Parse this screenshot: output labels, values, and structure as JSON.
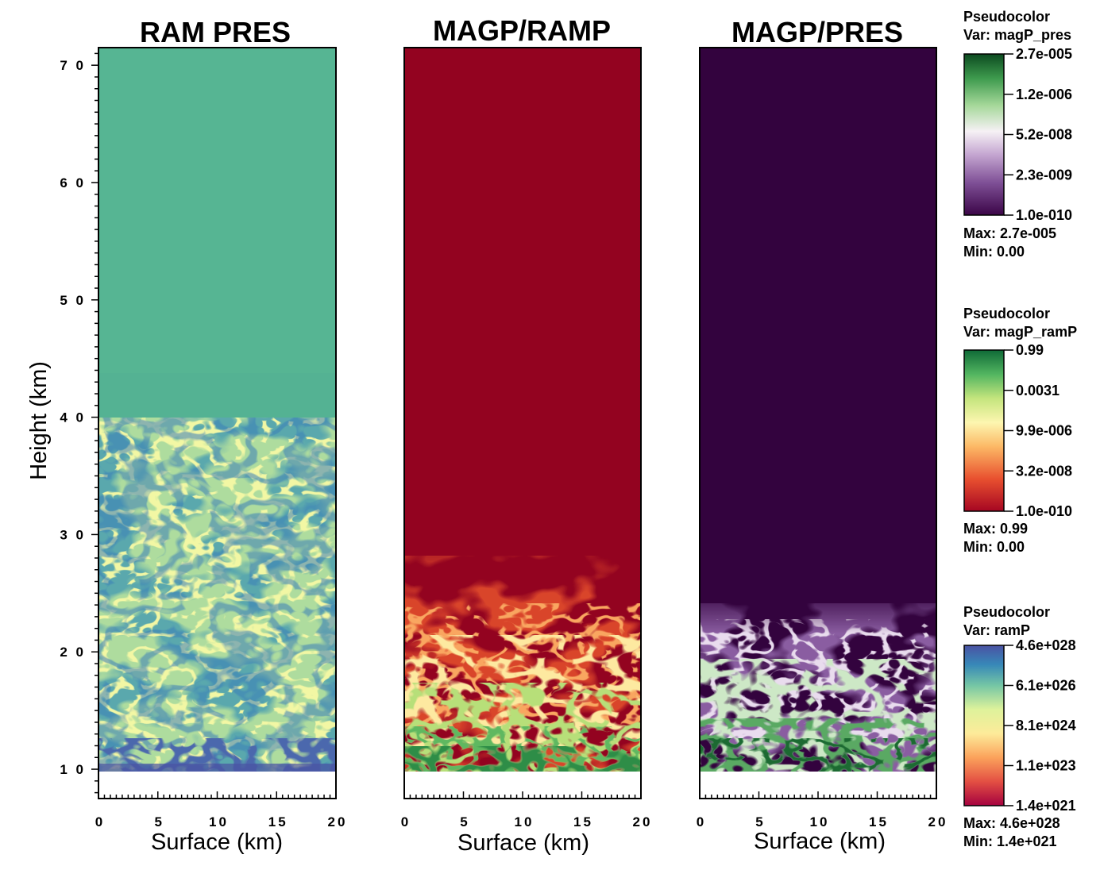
{
  "chart_data": [
    {
      "type": "heatmap",
      "title": "RAM PRES",
      "xlabel": "Surface (km)",
      "ylabel": "Height (km)",
      "xlim": [
        0,
        20
      ],
      "ylim": [
        7.5,
        71.5
      ],
      "x_ticks": [
        "0",
        "5",
        "10",
        "15",
        "20"
      ],
      "y_ticks": [
        "1 0",
        "2 0",
        "3 0",
        "4 0",
        "5 0",
        "6 0",
        "7 0"
      ],
      "y_tick_values": [
        10,
        20,
        30,
        40,
        50,
        60,
        70
      ],
      "x_tick_values": [
        0,
        5,
        10,
        15,
        20
      ],
      "colormap": "Spectral",
      "colorbar": "ramP",
      "uniform_above_km": 40,
      "uniform_color": "#56b593",
      "turbulent_range_km": [
        10,
        40
      ]
    },
    {
      "type": "heatmap",
      "title": "MAGP/RAMP",
      "xlabel": "Surface (km)",
      "xlim": [
        0,
        20
      ],
      "ylim": [
        7.5,
        71.5
      ],
      "x_ticks": [
        "0",
        "5",
        "10",
        "15",
        "20"
      ],
      "x_tick_values": [
        0,
        5,
        10,
        15,
        20
      ],
      "colormap": "RdYlGn",
      "colorbar": "magP_ramP",
      "uniform_above_km": 27,
      "uniform_color": "#930320",
      "turbulent_range_km": [
        10,
        27
      ]
    },
    {
      "type": "heatmap",
      "title": "MAGP/PRES",
      "xlabel": "Surface (km)",
      "xlim": [
        0,
        20
      ],
      "ylim": [
        7.5,
        71.5
      ],
      "x_ticks": [
        "0",
        "5",
        "10",
        "15",
        "20"
      ],
      "x_tick_values": [
        0,
        5,
        10,
        15,
        20
      ],
      "colormap": "PRGn",
      "colorbar": "magP_pres",
      "uniform_above_km": 25,
      "uniform_color": "#33033e",
      "turbulent_range_km": [
        10,
        25
      ]
    }
  ],
  "legends": [
    {
      "title": "Pseudocolor",
      "var": "Var: magP_pres",
      "ticks": [
        "2.7e-005",
        "1.2e-006",
        "5.2e-008",
        "2.3e-009",
        "1.0e-010"
      ],
      "max": "Max:  2.7e-005",
      "min": "Min:  0.00",
      "colors": [
        "#0c4a20",
        "#3d9a4d",
        "#a6d89a",
        "#f6f1f5",
        "#c6a8d2",
        "#7e4f96",
        "#3b0547"
      ]
    },
    {
      "title": "Pseudocolor",
      "var": "Var: magP_ramP",
      "ticks": [
        "0.99",
        "0.0031",
        "9.9e-006",
        "3.2e-008",
        "1.0e-010"
      ],
      "max": "Max:  0.99",
      "min": "Min:  0.00",
      "colors": [
        "#0f6a37",
        "#52b560",
        "#c4e57d",
        "#fdf6b0",
        "#fcb865",
        "#e8502f",
        "#a60622"
      ]
    },
    {
      "title": "Pseudocolor",
      "var": "Var: ramP",
      "ticks": [
        "4.6e+028",
        "6.1e+026",
        "8.1e+024",
        "1.1e+023",
        "1.4e+021"
      ],
      "max": "Max:  4.6e+028",
      "min": "Min:  1.4e+021",
      "colors": [
        "#4a52a3",
        "#3788b8",
        "#75c6a5",
        "#def29b",
        "#fdeb9a",
        "#fba25b",
        "#e34f43",
        "#a5013f"
      ]
    }
  ]
}
